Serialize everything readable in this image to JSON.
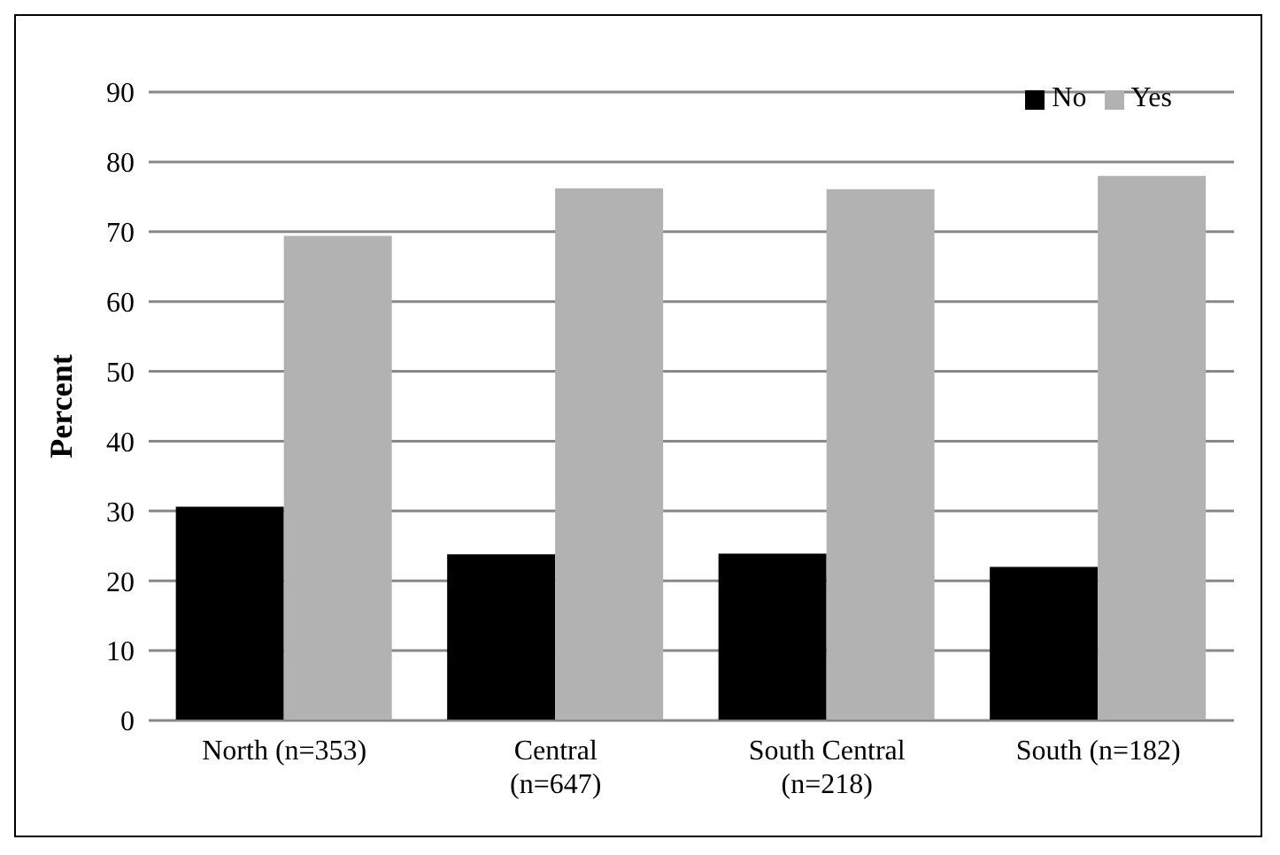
{
  "chart_data": {
    "type": "bar",
    "ylabel": "Percent",
    "categories": [
      "North (n=353)",
      "Central (n=647)",
      "South Central (n=218)",
      "South (n=182)"
    ],
    "series": [
      {
        "name": "No",
        "color": "#000000",
        "values": [
          30.6,
          23.8,
          23.9,
          22
        ]
      },
      {
        "name": "Yes",
        "color": "#b2b2b2",
        "values": [
          69.4,
          76.2,
          76.1,
          78
        ]
      }
    ],
    "ylim": [
      0,
      90
    ],
    "yticks": [
      0,
      10,
      20,
      30,
      40,
      50,
      60,
      70,
      80,
      90
    ],
    "grid": "y",
    "legend": "top right"
  }
}
